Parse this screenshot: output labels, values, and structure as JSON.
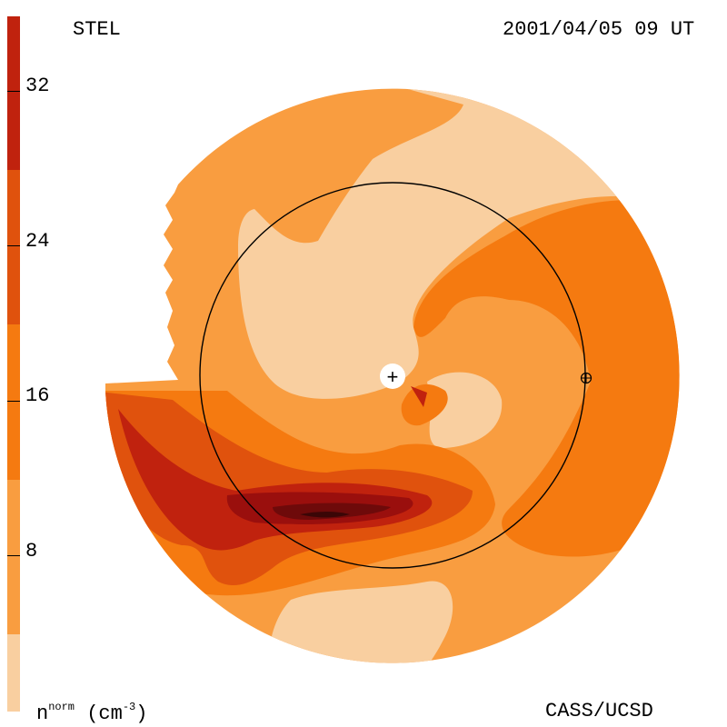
{
  "header": {
    "left_label": "STEL",
    "right_label": "2001/04/05 09 UT"
  },
  "footer": {
    "quantity_base": "n",
    "quantity_sup": "norm",
    "quantity_unit_open": " (cm",
    "quantity_unit_sup": "-3",
    "quantity_unit_close": ")",
    "credit": "CASS/UCSD"
  },
  "colorbar": {
    "levels": [
      {
        "color": "#f9cfa0"
      },
      {
        "color": "#f99d40"
      },
      {
        "color": "#f57a10"
      },
      {
        "color": "#e0520d"
      },
      {
        "color": "#c0220e"
      },
      {
        "color": "#9a0f0d"
      },
      {
        "color": "#6e0a0a"
      },
      {
        "color": "#3b0606"
      },
      {
        "color": "#1e0303"
      }
    ],
    "ticks": [
      "8",
      "16",
      "24",
      "32"
    ]
  },
  "markers": {
    "sun_symbol": "+",
    "earth_symbol": "⊕"
  }
}
